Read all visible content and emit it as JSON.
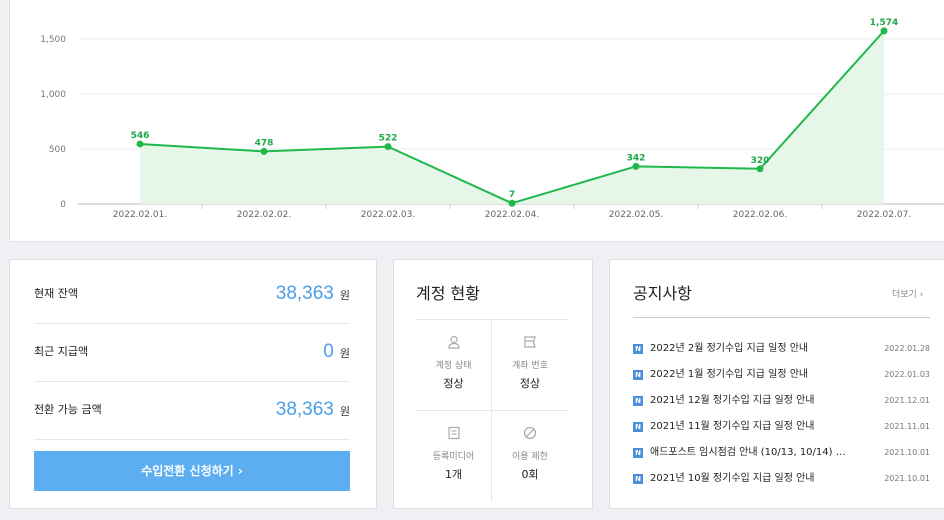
{
  "chart_data": {
    "type": "area",
    "categories": [
      "2022.02.01.",
      "2022.02.02.",
      "2022.02.03.",
      "2022.02.04.",
      "2022.02.05.",
      "2022.02.06.",
      "2022.02.07."
    ],
    "values": [
      546,
      478,
      522,
      7,
      342,
      320,
      1574
    ],
    "data_labels": [
      "546",
      "478",
      "522",
      "7",
      "342",
      "320",
      "1,574"
    ],
    "y_ticks": [
      "0",
      "500",
      "1,000",
      "1,500"
    ],
    "y_tick_values": [
      0,
      500,
      1000,
      1500
    ],
    "ylim": [
      0,
      1600
    ],
    "grid": true,
    "line_color": "#1fb84a",
    "fill_color": "#e6f7ea"
  },
  "balance": {
    "rows": [
      {
        "label": "현재 잔액",
        "value": "38,363",
        "unit": "원"
      },
      {
        "label": "최근 지급액",
        "value": "0",
        "unit": "원"
      },
      {
        "label": "전환 가능 금액",
        "value": "38,363",
        "unit": "원"
      }
    ],
    "button_label": "수입전환 신청하기  ›",
    "accent": "#5caef0"
  },
  "account": {
    "title": "계정 현황",
    "cells": [
      {
        "icon": "person-icon",
        "label": "계정 상태",
        "value": "정상"
      },
      {
        "icon": "card-icon",
        "label": "계좌 번호",
        "value": "정상"
      },
      {
        "icon": "document-icon",
        "label": "등록미디어",
        "value": "1개"
      },
      {
        "icon": "ban-icon",
        "label": "이용 제한",
        "value": "0회"
      }
    ]
  },
  "notices": {
    "title": "공지사항",
    "more_label": "더보기  ›",
    "badge": "N",
    "items": [
      {
        "title": "2022년 2월 정기수입 지급 일정 안내",
        "date": "2022.01.28"
      },
      {
        "title": "2022년 1월 정기수입 지급 일정 안내",
        "date": "2022.01.03"
      },
      {
        "title": "2021년 12월 정기수입 지급 일정 안내",
        "date": "2021.12.01"
      },
      {
        "title": "2021년 11월 정기수입 지급 일정 안내",
        "date": "2021.11.01"
      },
      {
        "title": "애드포스트 임시점검 안내 (10/13, 10/14) …",
        "date": "2021.10.01"
      },
      {
        "title": "2021년 10월 정기수입 지급 일정 안내",
        "date": "2021.10.01"
      }
    ]
  }
}
